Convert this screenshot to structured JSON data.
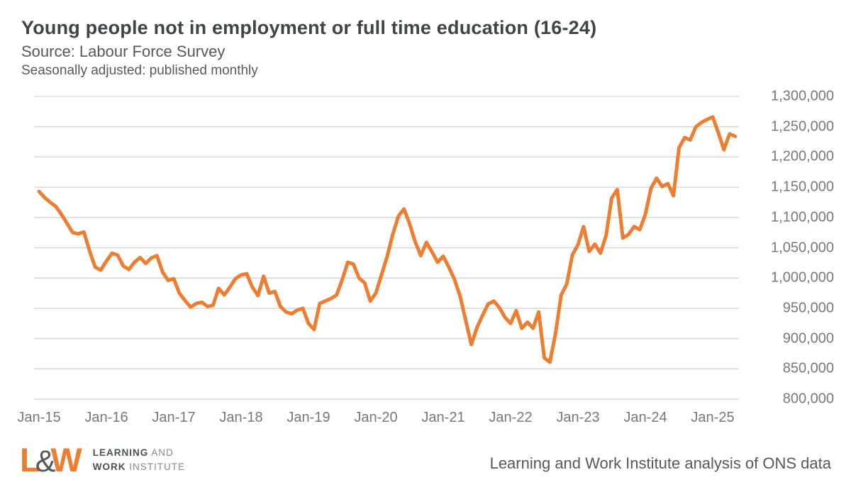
{
  "header": {
    "title": "Young people not in employment or full time education (16-24)",
    "source": "Source: Labour Force Survey",
    "note": "Seasonally adjusted: published monthly"
  },
  "chart_data": {
    "type": "line",
    "title": "Young people not in employment or full time education (16-24)",
    "ylim": [
      800000,
      1300000
    ],
    "grid": "horizontal",
    "legend": "none",
    "line_color": "#ed7d31",
    "gridline_color": "#d9d9d9",
    "y_ticks": [
      "1,300,000",
      "1,250,000",
      "1,200,000",
      "1,150,000",
      "1,100,000",
      "1,050,000",
      "1,000,000",
      "950,000",
      "900,000",
      "850,000",
      "800,000"
    ],
    "x_ticks": [
      "Jan-15",
      "Jan-16",
      "Jan-17",
      "Jan-18",
      "Jan-19",
      "Jan-20",
      "Jan-21",
      "Jan-22",
      "Jan-23",
      "Jan-24",
      "Jan-25"
    ],
    "series": [
      {
        "name": "Young people not in employment or full time education (16-24), seasonally adjusted",
        "x_start": "Jan-15",
        "x_end": "May-25",
        "frequency": "monthly",
        "values": [
          1143000,
          1133000,
          1125000,
          1118000,
          1105000,
          1090000,
          1075000,
          1073000,
          1076000,
          1045000,
          1018000,
          1013000,
          1028000,
          1041000,
          1038000,
          1020000,
          1014000,
          1026000,
          1034000,
          1024000,
          1033000,
          1037000,
          1010000,
          996000,
          999000,
          975000,
          963000,
          952000,
          958000,
          960000,
          953000,
          955000,
          983000,
          972000,
          985000,
          999000,
          1005000,
          1007000,
          985000,
          971000,
          1003000,
          975000,
          978000,
          953000,
          944000,
          941000,
          947000,
          950000,
          925000,
          915000,
          958000,
          962000,
          966000,
          972000,
          997000,
          1026000,
          1023000,
          1000000,
          992000,
          962000,
          975000,
          1005000,
          1035000,
          1072000,
          1102000,
          1114000,
          1090000,
          1060000,
          1037000,
          1059000,
          1043000,
          1026000,
          1036000,
          1018000,
          998000,
          970000,
          930000,
          890000,
          918000,
          938000,
          957000,
          962000,
          951000,
          935000,
          925000,
          946000,
          917000,
          927000,
          917000,
          944000,
          868000,
          861000,
          908000,
          972000,
          990000,
          1038000,
          1055000,
          1085000,
          1044000,
          1056000,
          1041000,
          1070000,
          1132000,
          1146000,
          1066000,
          1072000,
          1085000,
          1080000,
          1105000,
          1148000,
          1165000,
          1151000,
          1156000,
          1136000,
          1215000,
          1232000,
          1228000,
          1250000,
          1257000,
          1262000,
          1266000,
          1240000,
          1212000,
          1238000,
          1234000
        ]
      }
    ]
  },
  "footer": {
    "logo": {
      "letter_l": "L",
      "ampersand": "&",
      "letter_w": "W",
      "line1_bold": "LEARNING",
      "line1_light": " AND",
      "line2_bold": "WORK",
      "line2_light": " INSTITUTE",
      "orange": "#ed7d31"
    },
    "attribution": "Learning and Work Institute analysis of ONS data"
  }
}
